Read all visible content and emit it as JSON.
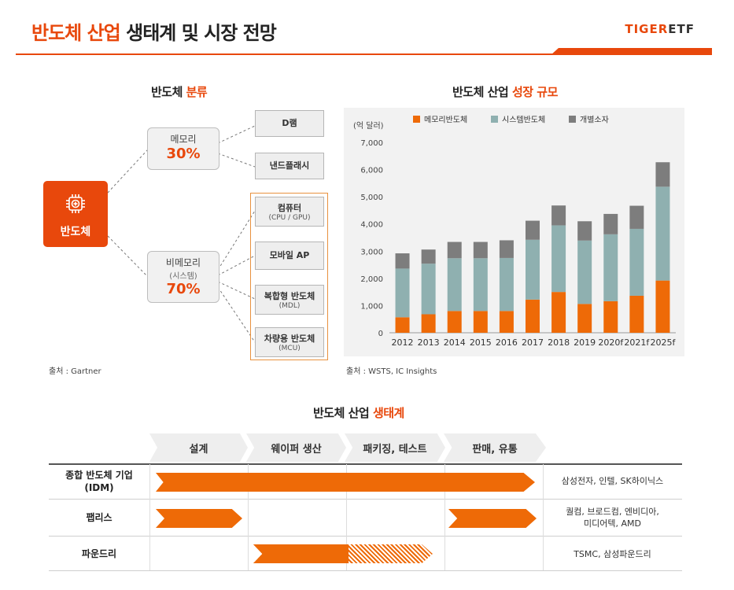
{
  "header": {
    "title_accent": "반도체 산업",
    "title_rest": " 생태계 및 시장 전망",
    "brand_tiger": "TIGER",
    "brand_etf": "ETF"
  },
  "classification": {
    "title_plain": "반도체 ",
    "title_accent": "분류",
    "root_label": "반도체",
    "memory": {
      "label": "메모리",
      "pct": "30%"
    },
    "nonmemory": {
      "label": "비메모리",
      "sub": "(시스템)",
      "pct": "70%"
    },
    "leaves": {
      "dram": "D램",
      "nand": "낸드플래시",
      "computer": "컴퓨터",
      "computer_sub": "(CPU / GPU)",
      "mobile": "모바일 AP",
      "compound": "복합형 반도체",
      "compound_sub": "(MDL)",
      "auto": "차량용 반도체",
      "auto_sub": "(MCU)"
    },
    "source": "출처 : Gartner"
  },
  "market": {
    "title_plain": "반도체 산업 ",
    "title_accent": "성장 규모",
    "source": "출처 : WSTS, IC Insights"
  },
  "chart_data": {
    "type": "bar",
    "stacked": true,
    "unit_label": "(억 달러)",
    "categories": [
      "2012",
      "2013",
      "2014",
      "2015",
      "2016",
      "2017",
      "2018",
      "2019",
      "2020f",
      "2021f",
      "2025f"
    ],
    "series": [
      {
        "name": "메모리반도체",
        "color": "#ee6a07",
        "values": [
          570,
          680,
          800,
          800,
          800,
          1220,
          1500,
          1060,
          1160,
          1360,
          1920
        ]
      },
      {
        "name": "시스템반도체",
        "color": "#8fb0b0",
        "values": [
          1790,
          1860,
          1940,
          1940,
          1950,
          2200,
          2450,
          2330,
          2460,
          2460,
          3450
        ]
      },
      {
        "name": "개별소자",
        "color": "#7d7d7d",
        "values": [
          560,
          520,
          600,
          600,
          650,
          700,
          730,
          710,
          750,
          850,
          900
        ]
      }
    ],
    "ylim": [
      0,
      7000
    ],
    "yticks": [
      "0",
      "1,000",
      "2,000",
      "3,000",
      "4,000",
      "5,000",
      "6,000",
      "7,000"
    ],
    "legend_position": "top"
  },
  "ecosystem": {
    "title_plain": "반도체 산업 ",
    "title_accent": "생태계",
    "stages": [
      "설계",
      "웨이퍼 생산",
      "패키징, 테스트",
      "판매, 유통"
    ],
    "rows": [
      {
        "label": "종합 반도체 기업",
        "label2": "(IDM)",
        "companies": "삼성전자, 인텔, SK하이닉스",
        "companies2": ""
      },
      {
        "label": "팹리스",
        "label2": "",
        "companies": "퀄컴, 브로드컴, 엔비디아,",
        "companies2": "미디어텍, AMD"
      },
      {
        "label": "파운드리",
        "label2": "",
        "companies": "TSMC, 삼성파운드리",
        "companies2": ""
      }
    ]
  }
}
